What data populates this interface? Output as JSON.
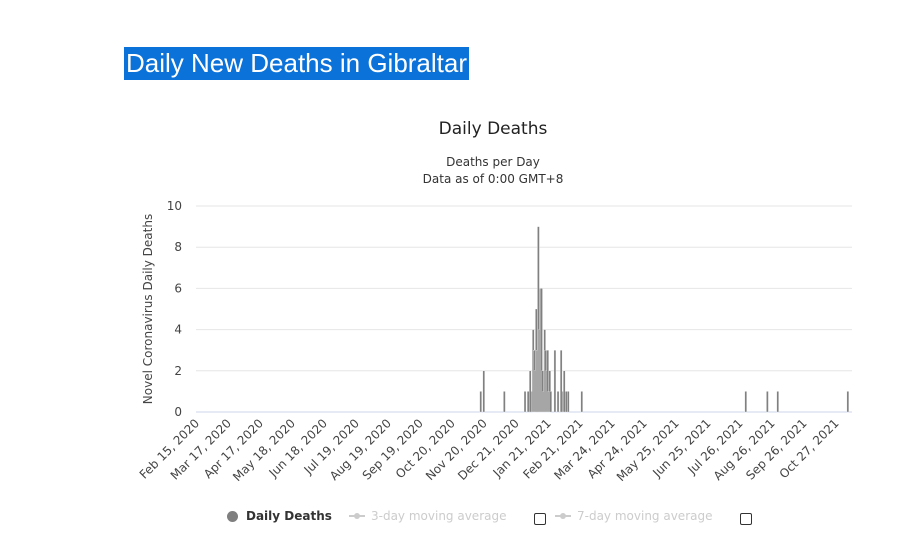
{
  "page": {
    "heading": "Daily New Deaths in Gibraltar"
  },
  "chart_data": {
    "type": "bar",
    "title": "Daily Deaths",
    "subtitle_lines": [
      "Deaths per Day",
      "Data as of 0:00 GMT+8"
    ],
    "xlabel": "",
    "ylabel": "Novel Coronavirus Daily Deaths",
    "ylim": [
      0,
      10
    ],
    "yticks": [
      0,
      2,
      4,
      6,
      8,
      10
    ],
    "x_start_date": "2020-02-15",
    "x_end_date": "2021-11-12",
    "xtick_labels": [
      "Feb 15, 2020",
      "Mar 17, 2020",
      "Apr 17, 2020",
      "May 18, 2020",
      "Jun 18, 2020",
      "Jul 19, 2020",
      "Aug 19, 2020",
      "Sep 19, 2020",
      "Oct 20, 2020",
      "Nov 20, 2020",
      "Dec 21, 2020",
      "Jan 21, 2021",
      "Feb 21, 2021",
      "Mar 24, 2021",
      "Apr 24, 2021",
      "May 25, 2021",
      "Jun 25, 2021",
      "Jul 26, 2021",
      "Aug 26, 2021",
      "Sep 26, 2021",
      "Oct 27, 2021"
    ],
    "grid": true,
    "legend_position": "bottom",
    "color": "#808080",
    "series": [
      {
        "name": "Daily Deaths",
        "points": [
          [
            "2020-11-17",
            1
          ],
          [
            "2020-11-20",
            2
          ],
          [
            "2020-12-10",
            1
          ],
          [
            "2020-12-30",
            1
          ],
          [
            "2021-01-02",
            1
          ],
          [
            "2021-01-04",
            2
          ],
          [
            "2021-01-06",
            1
          ],
          [
            "2021-01-07",
            4
          ],
          [
            "2021-01-08",
            3
          ],
          [
            "2021-01-09",
            2
          ],
          [
            "2021-01-10",
            5
          ],
          [
            "2021-01-11",
            3
          ],
          [
            "2021-01-12",
            9
          ],
          [
            "2021-01-13",
            4
          ],
          [
            "2021-01-14",
            6
          ],
          [
            "2021-01-15",
            6
          ],
          [
            "2021-01-16",
            2
          ],
          [
            "2021-01-17",
            1
          ],
          [
            "2021-01-18",
            4
          ],
          [
            "2021-01-19",
            3
          ],
          [
            "2021-01-20",
            2
          ],
          [
            "2021-01-21",
            3
          ],
          [
            "2021-01-22",
            1
          ],
          [
            "2021-01-23",
            2
          ],
          [
            "2021-01-24",
            1
          ],
          [
            "2021-01-28",
            3
          ],
          [
            "2021-01-31",
            1
          ],
          [
            "2021-02-03",
            3
          ],
          [
            "2021-02-05",
            1
          ],
          [
            "2021-02-06",
            2
          ],
          [
            "2021-02-08",
            1
          ],
          [
            "2021-02-10",
            1
          ],
          [
            "2021-02-23",
            1
          ],
          [
            "2021-08-01",
            1
          ],
          [
            "2021-08-22",
            1
          ],
          [
            "2021-09-01",
            1
          ],
          [
            "2021-11-08",
            1
          ]
        ]
      },
      {
        "name": "3-day moving average",
        "visible": false
      },
      {
        "name": "7-day moving average",
        "visible": false
      }
    ]
  },
  "legend": {
    "items": [
      {
        "label": "Daily Deaths",
        "active": true,
        "color": "#7f7f7f"
      },
      {
        "label": "3-day moving average",
        "active": false,
        "color": "#cccccc"
      },
      {
        "label": "7-day moving average",
        "active": false,
        "color": "#cccccc"
      }
    ]
  }
}
